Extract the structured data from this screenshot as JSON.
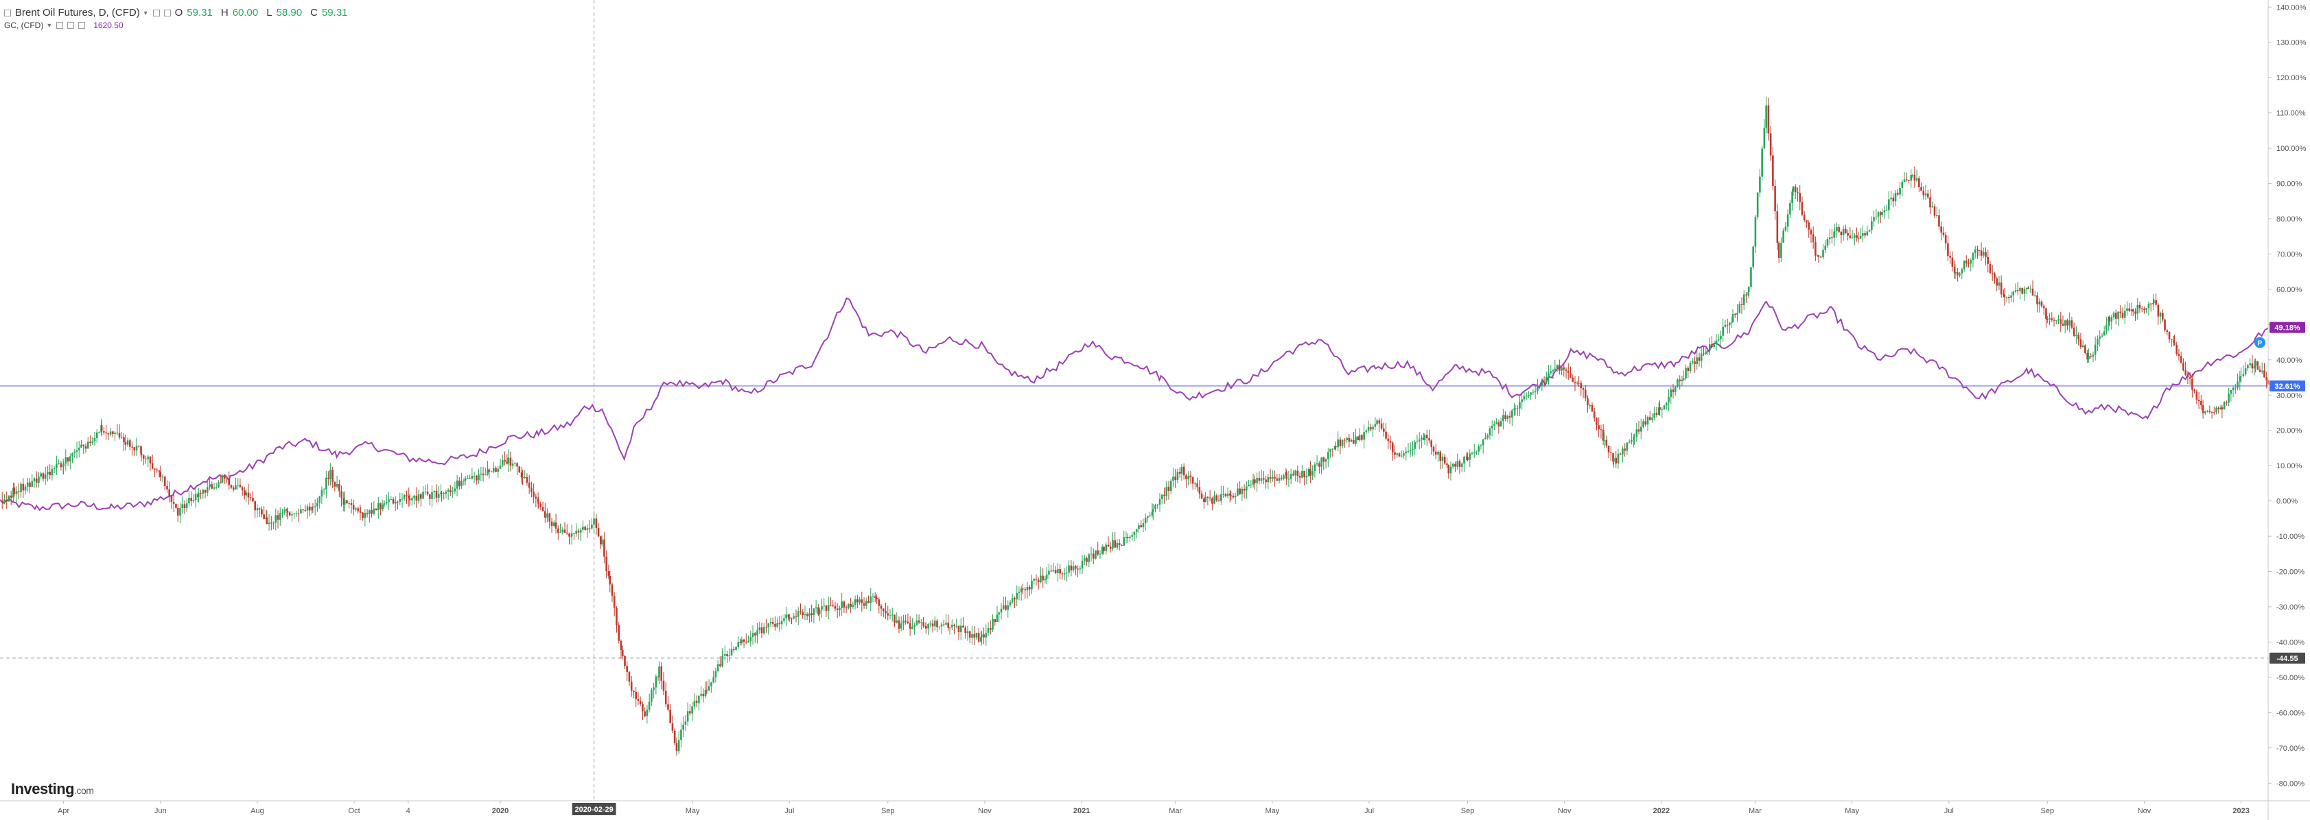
{
  "legend": {
    "main_title": "Brent Oil Futures, D, (CFD)",
    "open_label": "O",
    "open": "59.31",
    "high_label": "H",
    "high": "60.00",
    "low_label": "L",
    "low": "58.90",
    "close_label": "C",
    "close": "59.31",
    "compare_title": "GC, (CFD)",
    "compare_value": "1620.50"
  },
  "crosshair": {
    "date_label": "2020-02-29",
    "price_label": "-44.55",
    "price_pct": -44.55
  },
  "last_values": {
    "gc_badge": "49.18%",
    "gc_value": 49.18,
    "brent_badge": "32.61%",
    "brent_value": 32.61,
    "marker_icon": "alert-icon",
    "marker_label": "P"
  },
  "branding": {
    "logo_main": "Investing",
    "logo_suffix": ".com"
  },
  "chart_data": {
    "type": "line",
    "title": "",
    "y_unit": "%",
    "ylim": [
      -85,
      142
    ],
    "yticks": [
      -80,
      -70,
      -60,
      -50,
      -40,
      -30,
      -20,
      -10,
      0,
      10,
      20,
      30,
      40,
      50,
      60,
      70,
      80,
      90,
      100,
      110,
      120,
      130,
      140
    ],
    "ytick_labels": [
      "-80.00%",
      "-70.00%",
      "-60.00%",
      "-50.00%",
      "-40.00%",
      "-30.00%",
      "-20.00%",
      "-10.00%",
      "0.00%",
      "10.00%",
      "20.00%",
      "30.00%",
      "40.00%",
      "50.00%",
      "60.00%",
      "70.00%",
      "80.00%",
      "90.00%",
      "100.00%",
      "110.00%",
      "120.00%",
      "130.00%",
      "140.00%"
    ],
    "x_range": [
      "2019-02-20",
      "2023-01-18"
    ],
    "x_ticks": [
      {
        "date": "2019-04-01",
        "label": "Apr",
        "bold": false
      },
      {
        "date": "2019-06-01",
        "label": "Jun",
        "bold": false
      },
      {
        "date": "2019-08-01",
        "label": "Aug",
        "bold": false
      },
      {
        "date": "2019-10-01",
        "label": "Oct",
        "bold": false
      },
      {
        "date": "2019-11-04",
        "label": "4",
        "bold": false
      },
      {
        "date": "2020-01-01",
        "label": "2020",
        "bold": true
      },
      {
        "date": "2020-05-01",
        "label": "May",
        "bold": false
      },
      {
        "date": "2020-07-01",
        "label": "Jul",
        "bold": false
      },
      {
        "date": "2020-09-01",
        "label": "Sep",
        "bold": false
      },
      {
        "date": "2020-11-01",
        "label": "Nov",
        "bold": false
      },
      {
        "date": "2021-01-01",
        "label": "2021",
        "bold": true
      },
      {
        "date": "2021-03-01",
        "label": "Mar",
        "bold": false
      },
      {
        "date": "2021-05-01",
        "label": "May",
        "bold": false
      },
      {
        "date": "2021-07-01",
        "label": "Jul",
        "bold": false
      },
      {
        "date": "2021-09-01",
        "label": "Sep",
        "bold": false
      },
      {
        "date": "2021-11-01",
        "label": "Nov",
        "bold": false
      },
      {
        "date": "2022-01-01",
        "label": "2022",
        "bold": true
      },
      {
        "date": "2022-03-01",
        "label": "Mar",
        "bold": false
      },
      {
        "date": "2022-05-01",
        "label": "May",
        "bold": false
      },
      {
        "date": "2022-07-01",
        "label": "Jul",
        "bold": false
      },
      {
        "date": "2022-09-01",
        "label": "Sep",
        "bold": false
      },
      {
        "date": "2022-11-01",
        "label": "Nov",
        "bold": false
      },
      {
        "date": "2023-01-01",
        "label": "2023",
        "bold": true
      }
    ],
    "crosshair_date": "2020-02-29",
    "series": [
      {
        "type": "candlestick",
        "color_up": "#26a65b",
        "color_down": "#c0392b",
        "points": [
          [
            "2019-02-20",
            -1
          ],
          [
            "2019-03-01",
            3
          ],
          [
            "2019-03-15",
            6
          ],
          [
            "2019-04-01",
            11
          ],
          [
            "2019-04-15",
            16
          ],
          [
            "2019-04-25",
            21
          ],
          [
            "2019-05-10",
            17
          ],
          [
            "2019-05-20",
            14
          ],
          [
            "2019-06-01",
            7
          ],
          [
            "2019-06-12",
            -3
          ],
          [
            "2019-06-25",
            2
          ],
          [
            "2019-07-10",
            6
          ],
          [
            "2019-07-25",
            2
          ],
          [
            "2019-08-07",
            -6
          ],
          [
            "2019-08-20",
            -3
          ],
          [
            "2019-09-05",
            -2
          ],
          [
            "2019-09-16",
            8
          ],
          [
            "2019-09-25",
            -1
          ],
          [
            "2019-10-05",
            -4
          ],
          [
            "2019-10-20",
            -1
          ],
          [
            "2019-11-05",
            1
          ],
          [
            "2019-11-25",
            2
          ],
          [
            "2019-12-10",
            6
          ],
          [
            "2019-12-25",
            8
          ],
          [
            "2020-01-06",
            12
          ],
          [
            "2020-01-15",
            7
          ],
          [
            "2020-01-25",
            -1
          ],
          [
            "2020-02-05",
            -8
          ],
          [
            "2020-02-15",
            -10
          ],
          [
            "2020-02-29",
            -6
          ],
          [
            "2020-03-05",
            -12
          ],
          [
            "2020-03-10",
            -24
          ],
          [
            "2020-03-18",
            -45
          ],
          [
            "2020-03-25",
            -55
          ],
          [
            "2020-04-01",
            -60
          ],
          [
            "2020-04-10",
            -48
          ],
          [
            "2020-04-21",
            -70
          ],
          [
            "2020-04-28",
            -60
          ],
          [
            "2020-05-10",
            -53
          ],
          [
            "2020-05-20",
            -45
          ],
          [
            "2020-06-01",
            -40
          ],
          [
            "2020-06-15",
            -36
          ],
          [
            "2020-07-01",
            -33
          ],
          [
            "2020-07-20",
            -31
          ],
          [
            "2020-08-10",
            -29
          ],
          [
            "2020-08-25",
            -28
          ],
          [
            "2020-09-08",
            -35
          ],
          [
            "2020-09-25",
            -35
          ],
          [
            "2020-10-10",
            -35
          ],
          [
            "2020-10-30",
            -39
          ],
          [
            "2020-11-10",
            -32
          ],
          [
            "2020-11-25",
            -25
          ],
          [
            "2020-12-10",
            -21
          ],
          [
            "2020-12-31",
            -18
          ],
          [
            "2021-01-15",
            -13
          ],
          [
            "2021-01-30",
            -11
          ],
          [
            "2021-02-15",
            -2
          ],
          [
            "2021-03-05",
            9
          ],
          [
            "2021-03-20",
            0
          ],
          [
            "2021-04-05",
            1
          ],
          [
            "2021-04-20",
            6
          ],
          [
            "2021-05-10",
            7
          ],
          [
            "2021-05-25",
            8
          ],
          [
            "2021-06-10",
            16
          ],
          [
            "2021-06-25",
            18
          ],
          [
            "2021-07-06",
            22
          ],
          [
            "2021-07-20",
            12
          ],
          [
            "2021-08-05",
            18
          ],
          [
            "2021-08-20",
            9
          ],
          [
            "2021-09-01",
            12
          ],
          [
            "2021-09-15",
            20
          ],
          [
            "2021-10-01",
            26
          ],
          [
            "2021-10-15",
            32
          ],
          [
            "2021-10-26",
            38
          ],
          [
            "2021-11-10",
            34
          ],
          [
            "2021-11-26",
            17
          ],
          [
            "2021-12-02",
            11
          ],
          [
            "2021-12-15",
            19
          ],
          [
            "2021-12-31",
            26
          ],
          [
            "2022-01-15",
            36
          ],
          [
            "2022-01-30",
            43
          ],
          [
            "2022-02-15",
            52
          ],
          [
            "2022-02-25",
            60
          ],
          [
            "2022-03-08",
            112
          ],
          [
            "2022-03-16",
            69
          ],
          [
            "2022-03-25",
            90
          ],
          [
            "2022-04-10",
            68
          ],
          [
            "2022-04-20",
            77
          ],
          [
            "2022-05-05",
            74
          ],
          [
            "2022-05-20",
            82
          ],
          [
            "2022-06-08",
            93
          ],
          [
            "2022-06-22",
            82
          ],
          [
            "2022-07-05",
            64
          ],
          [
            "2022-07-20",
            72
          ],
          [
            "2022-08-05",
            58
          ],
          [
            "2022-08-20",
            60
          ],
          [
            "2022-09-01",
            52
          ],
          [
            "2022-09-15",
            50
          ],
          [
            "2022-09-27",
            40
          ],
          [
            "2022-10-10",
            52
          ],
          [
            "2022-10-25",
            54
          ],
          [
            "2022-11-07",
            56
          ],
          [
            "2022-11-20",
            44
          ],
          [
            "2022-12-08",
            25
          ],
          [
            "2022-12-20",
            27
          ],
          [
            "2023-01-01",
            36
          ],
          [
            "2023-01-10",
            39
          ],
          [
            "2023-01-18",
            33
          ]
        ]
      },
      {
        "type": "line",
        "color": "#9c3fb5",
        "points": [
          [
            "2019-02-20",
            0
          ],
          [
            "2019-03-15",
            -2
          ],
          [
            "2019-04-10",
            -1
          ],
          [
            "2019-05-01",
            -2
          ],
          [
            "2019-05-20",
            -1
          ],
          [
            "2019-06-10",
            2
          ],
          [
            "2019-06-30",
            6
          ],
          [
            "2019-07-15",
            7
          ],
          [
            "2019-07-30",
            10
          ],
          [
            "2019-08-15",
            15
          ],
          [
            "2019-09-01",
            17
          ],
          [
            "2019-09-20",
            13
          ],
          [
            "2019-10-10",
            16
          ],
          [
            "2019-11-05",
            12
          ],
          [
            "2019-11-25",
            11
          ],
          [
            "2019-12-15",
            13
          ],
          [
            "2020-01-08",
            18
          ],
          [
            "2020-01-25",
            19
          ],
          [
            "2020-02-15",
            22
          ],
          [
            "2020-02-24",
            27
          ],
          [
            "2020-03-05",
            26
          ],
          [
            "2020-03-12",
            19
          ],
          [
            "2020-03-19",
            12
          ],
          [
            "2020-03-25",
            20
          ],
          [
            "2020-04-05",
            27
          ],
          [
            "2020-04-15",
            34
          ],
          [
            "2020-05-05",
            32
          ],
          [
            "2020-05-20",
            34
          ],
          [
            "2020-06-05",
            30
          ],
          [
            "2020-06-25",
            35
          ],
          [
            "2020-07-15",
            39
          ],
          [
            "2020-07-25",
            47
          ],
          [
            "2020-08-06",
            58
          ],
          [
            "2020-08-20",
            47
          ],
          [
            "2020-09-05",
            48
          ],
          [
            "2020-09-25",
            42
          ],
          [
            "2020-10-10",
            46
          ],
          [
            "2020-10-30",
            44
          ],
          [
            "2020-11-10",
            38
          ],
          [
            "2020-11-30",
            34
          ],
          [
            "2020-12-20",
            39
          ],
          [
            "2021-01-06",
            45
          ],
          [
            "2021-01-20",
            41
          ],
          [
            "2021-02-05",
            39
          ],
          [
            "2021-02-20",
            35
          ],
          [
            "2021-03-08",
            29
          ],
          [
            "2021-03-30",
            32
          ],
          [
            "2021-04-20",
            35
          ],
          [
            "2021-05-10",
            42
          ],
          [
            "2021-06-01",
            46
          ],
          [
            "2021-06-18",
            36
          ],
          [
            "2021-07-05",
            38
          ],
          [
            "2021-07-25",
            39
          ],
          [
            "2021-08-10",
            32
          ],
          [
            "2021-08-25",
            38
          ],
          [
            "2021-09-15",
            36
          ],
          [
            "2021-09-30",
            30
          ],
          [
            "2021-10-20",
            34
          ],
          [
            "2021-11-05",
            42
          ],
          [
            "2021-11-20",
            41
          ],
          [
            "2021-12-05",
            36
          ],
          [
            "2021-12-20",
            38
          ],
          [
            "2022-01-10",
            39
          ],
          [
            "2022-01-25",
            43
          ],
          [
            "2022-02-10",
            44
          ],
          [
            "2022-02-25",
            48
          ],
          [
            "2022-03-08",
            57
          ],
          [
            "2022-03-20",
            48
          ],
          [
            "2022-04-05",
            52
          ],
          [
            "2022-04-18",
            54
          ],
          [
            "2022-05-05",
            44
          ],
          [
            "2022-05-20",
            40
          ],
          [
            "2022-06-05",
            43
          ],
          [
            "2022-06-25",
            38
          ],
          [
            "2022-07-10",
            33
          ],
          [
            "2022-07-20",
            29
          ],
          [
            "2022-08-05",
            33
          ],
          [
            "2022-08-20",
            37
          ],
          [
            "2022-09-05",
            32
          ],
          [
            "2022-09-25",
            25
          ],
          [
            "2022-10-10",
            27
          ],
          [
            "2022-10-25",
            24
          ],
          [
            "2022-11-03",
            23
          ],
          [
            "2022-11-15",
            32
          ],
          [
            "2022-12-01",
            36
          ],
          [
            "2022-12-15",
            40
          ],
          [
            "2023-01-01",
            42
          ],
          [
            "2023-01-10",
            46
          ],
          [
            "2023-01-18",
            49
          ]
        ]
      }
    ]
  }
}
